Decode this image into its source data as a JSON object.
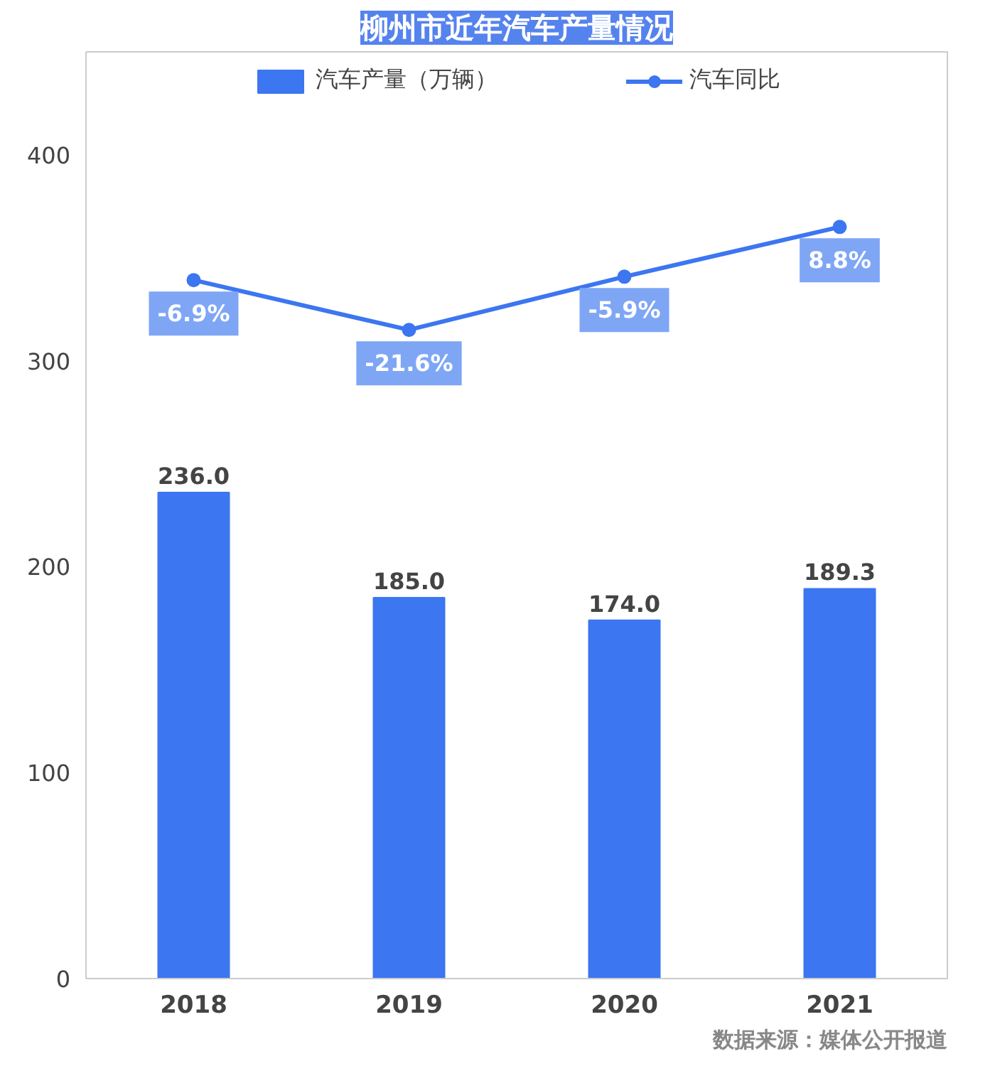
{
  "chart_data": {
    "type": "bar",
    "title": "柳州市近年汽车产量情况",
    "categories": [
      "2018",
      "2019",
      "2020",
      "2021"
    ],
    "series": [
      {
        "name": "汽车产量（万辆）",
        "color": "#3c76f0",
        "values": [
          236.0,
          185.0,
          174.0,
          189.3
        ],
        "value_labels": [
          "236.0",
          "185.0",
          "174.0",
          "189.3"
        ]
      },
      {
        "name": "汽车同比",
        "type": "line",
        "axis": "y2",
        "color": "#3c76f0",
        "values": [
          -6.9,
          -21.6,
          -5.9,
          8.8
        ],
        "value_labels": [
          "-6.9%",
          "-21.6%",
          "-5.9%",
          "8.8%"
        ]
      }
    ],
    "ylim": [
      0,
      450
    ],
    "yticks": [
      0,
      100,
      200,
      300,
      400
    ],
    "grid": false,
    "legend": "top",
    "marker": "circle",
    "annotations": [
      "数据来源：媒体公开报道"
    ]
  }
}
